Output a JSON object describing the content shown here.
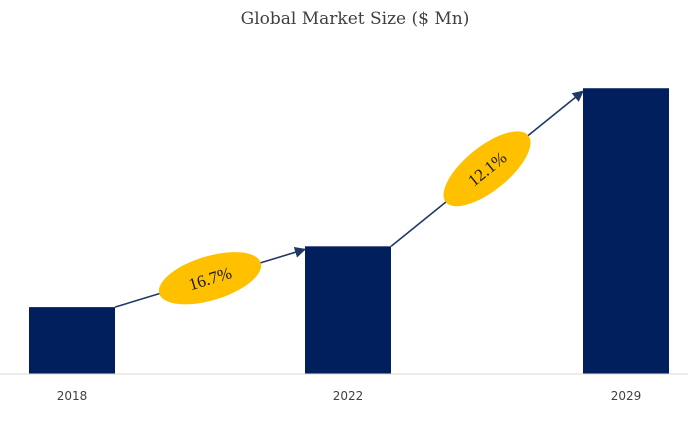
{
  "chart_data": {
    "type": "bar",
    "title": "Global Market Size ($ Mn)",
    "xlabel": "",
    "ylabel": "",
    "categories": [
      "2018",
      "2022",
      "2029"
    ],
    "values": [
      22,
      42,
      94
    ],
    "ylim": [
      0,
      100
    ],
    "grid": false,
    "legend": "none",
    "bar_color": "#001f5c",
    "axis_color": "#d9d9d9",
    "annotations": [
      {
        "label": "16.7%",
        "from": "2018",
        "to": "2022",
        "fill": "#ffc000",
        "arrow_color": "#1f3864"
      },
      {
        "label": "12.1%",
        "from": "2022",
        "to": "2029",
        "fill": "#ffc000",
        "arrow_color": "#1f3864"
      }
    ]
  }
}
